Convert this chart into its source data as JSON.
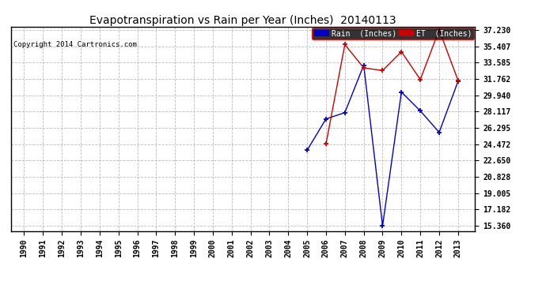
{
  "title": "Evapotranspiration vs Rain per Year (Inches)  20140113",
  "copyright": "Copyright 2014 Cartronics.com",
  "years": [
    1990,
    1991,
    1992,
    1993,
    1994,
    1995,
    1996,
    1997,
    1998,
    1999,
    2000,
    2001,
    2002,
    2003,
    2004,
    2005,
    2006,
    2007,
    2008,
    2009,
    2010,
    2011,
    2012,
    2013
  ],
  "rain": [
    null,
    null,
    null,
    null,
    null,
    null,
    null,
    null,
    null,
    null,
    null,
    null,
    null,
    null,
    null,
    23.8,
    27.3,
    28.0,
    33.3,
    15.36,
    30.3,
    28.2,
    25.8,
    31.5
  ],
  "et": [
    null,
    null,
    null,
    null,
    null,
    null,
    null,
    null,
    null,
    null,
    null,
    null,
    null,
    null,
    null,
    null,
    24.5,
    35.6,
    33.0,
    32.7,
    34.8,
    31.7,
    37.23,
    31.6
  ],
  "rain_color": "#0000cc",
  "et_color": "#cc0000",
  "bg_color": "#ffffff",
  "grid_color": "#bbbbbb",
  "yticks": [
    15.36,
    17.182,
    19.005,
    20.828,
    22.65,
    24.472,
    26.295,
    28.117,
    29.94,
    31.762,
    33.585,
    35.407,
    37.23
  ],
  "ylim_min": 14.8,
  "ylim_max": 37.6,
  "legend_rain_label": "Rain  (Inches)",
  "legend_et_label": "ET  (Inches)"
}
